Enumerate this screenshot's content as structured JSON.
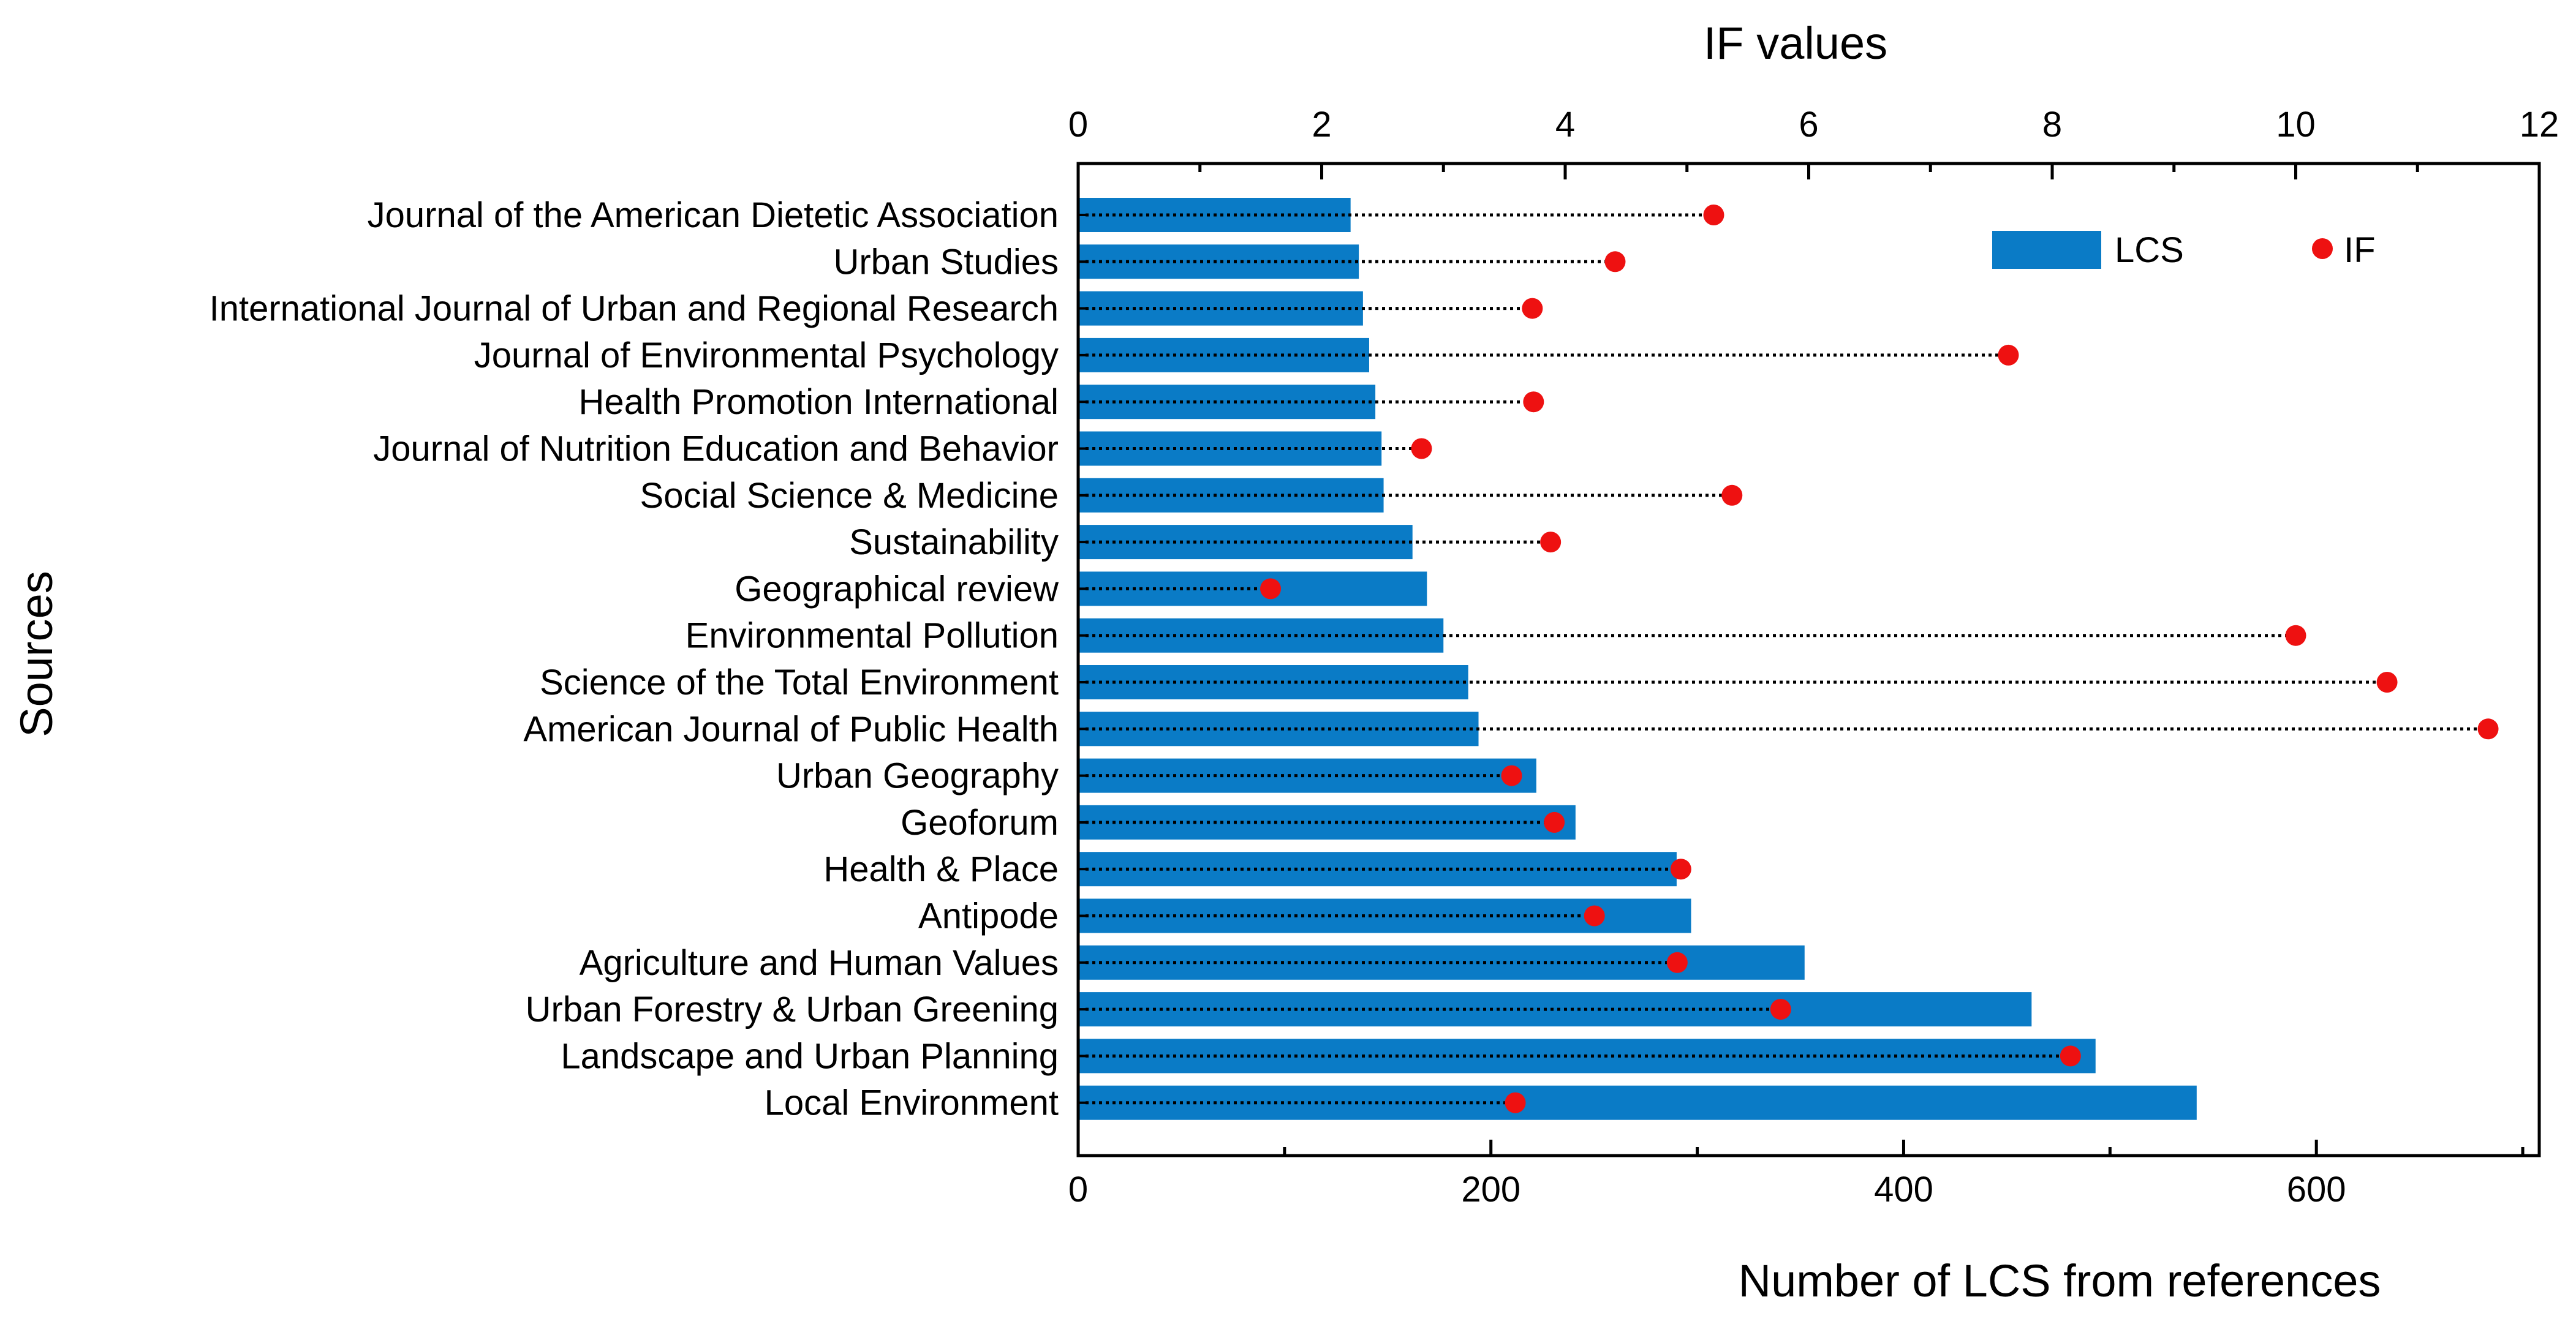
{
  "chart_data": {
    "type": "bar",
    "orientation": "horizontal",
    "ylabel": "Sources",
    "xlabel_bottom": "Number of LCS from references",
    "xlabel_top": "IF values",
    "bottom_axis": {
      "range": [
        0,
        708
      ],
      "ticks": [
        0,
        200,
        400,
        600
      ],
      "tick_labels": [
        "0",
        "200",
        "400",
        "600"
      ]
    },
    "top_axis": {
      "range": [
        0,
        12
      ],
      "ticks": [
        0,
        2,
        4,
        6,
        8,
        10,
        12
      ],
      "tick_labels": [
        "0",
        "2",
        "4",
        "6",
        "8",
        "10",
        "12"
      ]
    },
    "categories": [
      "Journal of the American Dietetic Association",
      "Urban Studies",
      "International Journal of Urban and Regional Research",
      "Journal of Environmental Psychology",
      "Health Promotion International",
      "Journal of Nutrition Education and Behavior",
      "Social Science & Medicine",
      "Sustainability",
      "Geographical review",
      "Environmental Pollution",
      "Science of the Total Environment",
      "American Journal of Public Health",
      "Urban Geography",
      "Geoforum",
      "Health & Place",
      "Antipode",
      "Agriculture and Human Values",
      "Urban Forestry & Urban Greening",
      "Landscape and Urban Planning",
      "Local Environment"
    ],
    "series": [
      {
        "name": "LCS",
        "axis": "bottom",
        "color": "#0a7bc6",
        "values": [
          132,
          136,
          138,
          141,
          144,
          147,
          148,
          162,
          169,
          177,
          189,
          194,
          222,
          241,
          290,
          297,
          352,
          462,
          493,
          542
        ]
      },
      {
        "name": "IF",
        "axis": "top",
        "color": "#ee1111",
        "values": [
          5.22,
          4.41,
          3.73,
          7.64,
          3.74,
          2.82,
          5.37,
          3.88,
          1.58,
          10.0,
          10.75,
          11.58,
          3.56,
          3.91,
          4.95,
          4.24,
          4.92,
          5.77,
          8.15,
          3.59
        ]
      }
    ],
    "legend": {
      "position": "top-right",
      "entries": [
        "LCS",
        "IF"
      ]
    }
  }
}
